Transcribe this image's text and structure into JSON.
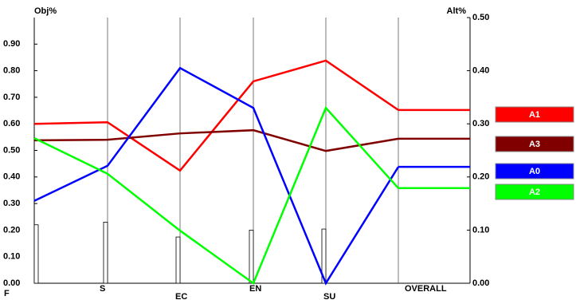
{
  "chart_data": {
    "type": "line",
    "y_label": "Obj%",
    "y2_label": "Alt%",
    "categories": [
      "F",
      "S",
      "EC",
      "EN",
      "SU",
      "OVERALL"
    ],
    "weights": [
      0.22,
      0.23,
      0.174,
      0.2,
      0.204
    ],
    "weights_color": "#ffffff",
    "ylim": [
      0,
      1
    ],
    "yticks": [
      {
        "value": 0,
        "label": "0.00"
      },
      {
        "value": 0.1,
        "label": "0.10"
      },
      {
        "value": 0.2,
        "label": "0.20"
      },
      {
        "value": 0.3,
        "label": "0.30"
      },
      {
        "value": 0.4,
        "label": "0.40"
      },
      {
        "value": 0.5,
        "label": "0.50"
      },
      {
        "value": 0.6,
        "label": "0.60"
      },
      {
        "value": 0.7,
        "label": "0.70"
      },
      {
        "value": 0.8,
        "label": "0.80"
      },
      {
        "value": 0.9,
        "label": "0.90"
      }
    ],
    "y2lim": [
      0,
      0.5
    ],
    "y2ticks": [
      {
        "value": 0,
        "label": "0.00"
      },
      {
        "value": 0.1,
        "label": "0.10"
      },
      {
        "value": 0.2,
        "label": "0.20"
      },
      {
        "value": 0.3,
        "label": "0.30"
      },
      {
        "value": 0.4,
        "label": "0.40"
      },
      {
        "value": 0.5,
        "label": "0.50"
      }
    ],
    "series": [
      {
        "name": "A1",
        "color": "#ff0000",
        "axis": "y2",
        "values": [
          0.3,
          0.303,
          0.212,
          0.38,
          0.419,
          0.326
        ]
      },
      {
        "name": "A3",
        "color": "#800000",
        "axis": "y2",
        "values": [
          0.269,
          0.27,
          0.282,
          0.288,
          0.249,
          0.272
        ]
      },
      {
        "name": "A0",
        "color": "#0000ff",
        "axis": "y2",
        "values": [
          0.155,
          0.221,
          0.405,
          0.33,
          0,
          0.219
        ]
      },
      {
        "name": "A2",
        "color": "#00ff00",
        "axis": "y2",
        "values": [
          0.273,
          0.206,
          0.099,
          0,
          0.33,
          0.179
        ]
      }
    ]
  }
}
